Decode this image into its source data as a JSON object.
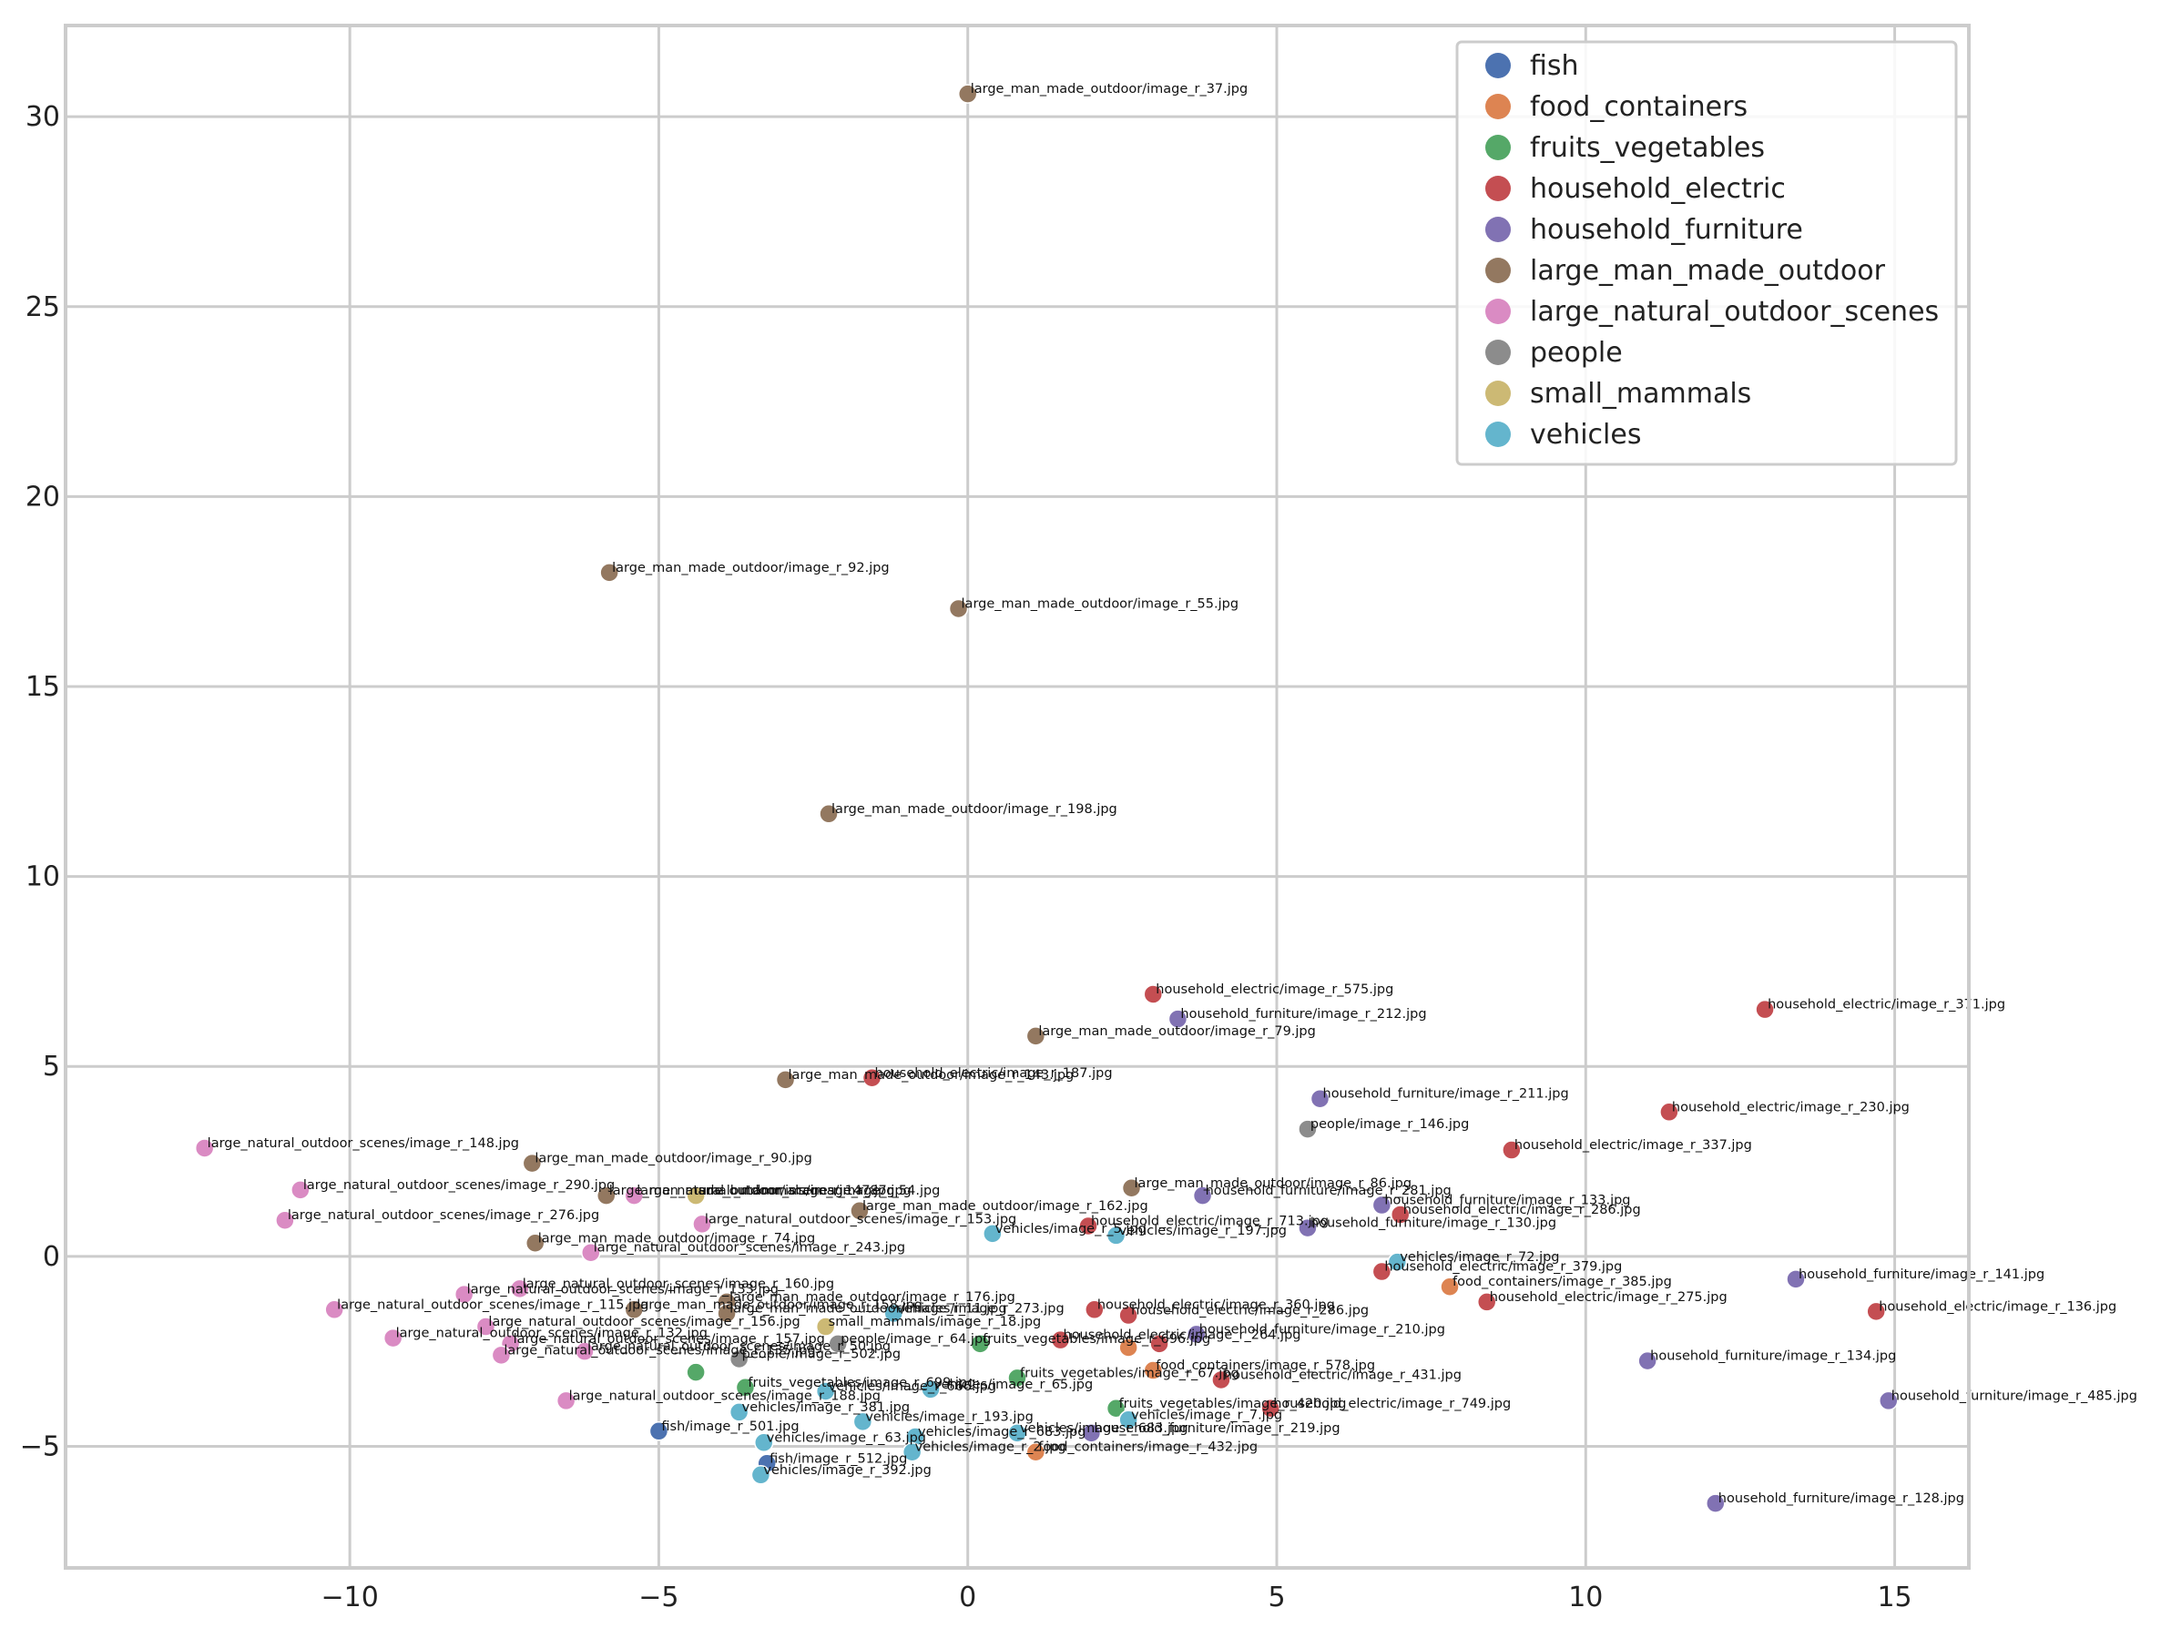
{
  "chart_data": {
    "type": "scatter",
    "title": "",
    "xlabel": "",
    "ylabel": "",
    "xlim": [
      -14.6,
      16.2
    ],
    "ylim": [
      -8.2,
      32.4
    ],
    "x_ticks": [
      -10,
      -5,
      0,
      5,
      10,
      15
    ],
    "x_tick_labels": [
      "−10",
      "−5",
      "0",
      "5",
      "10",
      "15"
    ],
    "y_ticks": [
      -5,
      0,
      5,
      10,
      15,
      20,
      25,
      30
    ],
    "y_tick_labels": [
      "−5",
      "0",
      "5",
      "10",
      "15",
      "20",
      "25",
      "30"
    ],
    "grid": true,
    "legend_position": "top-right",
    "series": [
      {
        "name": "fish",
        "color": "#4c72b0",
        "points": [
          {
            "x": -5.0,
            "y": -4.6,
            "label": "fish/image_r_501.jpg"
          },
          {
            "x": -3.25,
            "y": -5.45,
            "label": "fish/image_r_512.jpg"
          }
        ]
      },
      {
        "name": "food_containers",
        "color": "#dd8452",
        "points": [
          {
            "x": 7.8,
            "y": -0.8,
            "label": "food_containers/image_r_385.jpg"
          },
          {
            "x": 3.0,
            "y": -3.0,
            "label": "food_containers/image_r_578.jpg"
          },
          {
            "x": 1.1,
            "y": -5.15,
            "label": "food_containers/image_r_432.jpg"
          },
          {
            "x": 2.6,
            "y": -2.4,
            "label": ""
          }
        ]
      },
      {
        "name": "fruits_vegetables",
        "color": "#55a868",
        "points": [
          {
            "x": -4.4,
            "y": -3.05,
            "label": ""
          },
          {
            "x": -3.6,
            "y": -3.45,
            "label": "fruits_vegetables/image_r_699.jpg"
          },
          {
            "x": 0.2,
            "y": -2.3,
            "label": "fruits_vegetables/image_r_696.jpg"
          },
          {
            "x": 0.8,
            "y": -3.2,
            "label": "fruits_vegetables/image_r_67.jpg"
          },
          {
            "x": 2.4,
            "y": -4.0,
            "label": "fruits_vegetables/image_r_420.jpg"
          }
        ]
      },
      {
        "name": "household_electric",
        "color": "#c44e52",
        "points": [
          {
            "x": 3.0,
            "y": 6.9,
            "label": "household_electric/image_r_575.jpg"
          },
          {
            "x": 12.9,
            "y": 6.5,
            "label": "household_electric/image_r_371.jpg"
          },
          {
            "x": -1.55,
            "y": 4.7,
            "label": "household_electric/image_r_187.jpg"
          },
          {
            "x": 11.35,
            "y": 3.8,
            "label": "household_electric/image_r_230.jpg"
          },
          {
            "x": 8.8,
            "y": 2.8,
            "label": "household_electric/image_r_337.jpg"
          },
          {
            "x": 7.0,
            "y": 1.1,
            "label": "household_electric/image_r_286.jpg"
          },
          {
            "x": 1.95,
            "y": 0.8,
            "label": "household_electric/image_r_713.jpg"
          },
          {
            "x": 6.7,
            "y": -0.4,
            "label": "household_electric/image_r_379.jpg"
          },
          {
            "x": 8.4,
            "y": -1.2,
            "label": "household_electric/image_r_275.jpg"
          },
          {
            "x": 14.7,
            "y": -1.45,
            "label": "household_electric/image_r_136.jpg"
          },
          {
            "x": 2.05,
            "y": -1.4,
            "label": "household_electric/image_r_360.jpg"
          },
          {
            "x": 2.6,
            "y": -1.55,
            "label": "household_electric/image_r_286.jpg"
          },
          {
            "x": 1.5,
            "y": -2.2,
            "label": "household_electric/image_r_264.jpg"
          },
          {
            "x": 3.1,
            "y": -2.3,
            "label": ""
          },
          {
            "x": 4.1,
            "y": -3.25,
            "label": "household_electric/image_r_431.jpg"
          },
          {
            "x": 4.9,
            "y": -4.0,
            "label": "household_electric/image_r_749.jpg"
          }
        ]
      },
      {
        "name": "household_furniture",
        "color": "#8172b3",
        "points": [
          {
            "x": 3.4,
            "y": 6.25,
            "label": "household_furniture/image_r_212.jpg"
          },
          {
            "x": 5.7,
            "y": 4.15,
            "label": "household_furniture/image_r_211.jpg"
          },
          {
            "x": 6.7,
            "y": 1.35,
            "label": "household_furniture/image_r_133.jpg"
          },
          {
            "x": 5.5,
            "y": 0.75,
            "label": "household_furniture/image_r_130.jpg"
          },
          {
            "x": 3.8,
            "y": 1.6,
            "label": "household_furniture/image_r_281.jpg"
          },
          {
            "x": 13.4,
            "y": -0.6,
            "label": "household_furniture/image_r_141.jpg"
          },
          {
            "x": 3.7,
            "y": -2.05,
            "label": "household_furniture/image_r_210.jpg"
          },
          {
            "x": 11.0,
            "y": -2.75,
            "label": "household_furniture/image_r_134.jpg"
          },
          {
            "x": 14.9,
            "y": -3.8,
            "label": "household_furniture/image_r_485.jpg"
          },
          {
            "x": 2.0,
            "y": -4.65,
            "label": "household_furniture/image_r_219.jpg"
          },
          {
            "x": 12.1,
            "y": -6.5,
            "label": "household_furniture/image_r_128.jpg"
          }
        ]
      },
      {
        "name": "large_man_made_outdoor",
        "color": "#937860",
        "points": [
          {
            "x": 0.0,
            "y": 30.6,
            "label": "large_man_made_outdoor/image_r_37.jpg"
          },
          {
            "x": -5.8,
            "y": 18.0,
            "label": "large_man_made_outdoor/image_r_92.jpg"
          },
          {
            "x": -0.15,
            "y": 17.05,
            "label": "large_man_made_outdoor/image_r_55.jpg"
          },
          {
            "x": -2.25,
            "y": 11.65,
            "label": "large_man_made_outdoor/image_r_198.jpg"
          },
          {
            "x": 1.1,
            "y": 5.8,
            "label": "large_man_made_outdoor/image_r_79.jpg"
          },
          {
            "x": -2.95,
            "y": 4.65,
            "label": "large_man_made_outdoor/image_r_143.jpg"
          },
          {
            "x": -7.05,
            "y": 2.45,
            "label": "large_man_made_outdoor/image_r_90.jpg"
          },
          {
            "x": 2.65,
            "y": 1.8,
            "label": "large_man_made_outdoor/image_r_86.jpg"
          },
          {
            "x": -5.85,
            "y": 1.6,
            "label": "large_man_made_outdoor/image_r_147.jpg"
          },
          {
            "x": -1.75,
            "y": 1.2,
            "label": "large_man_made_outdoor/image_r_162.jpg"
          },
          {
            "x": -7.0,
            "y": 0.35,
            "label": "large_man_made_outdoor/image_r_74.jpg"
          },
          {
            "x": -3.9,
            "y": -1.2,
            "label": "large_man_made_outdoor/image_r_176.jpg"
          },
          {
            "x": -5.4,
            "y": -1.4,
            "label": "large_man_made_outdoor/image_r_158.jpg"
          },
          {
            "x": -3.9,
            "y": -1.5,
            "label": "large_man_made_outdoor/image_r_11.jpg"
          }
        ]
      },
      {
        "name": "large_natural_outdoor_scenes",
        "color": "#da8bc3",
        "points": [
          {
            "x": -12.35,
            "y": 2.85,
            "label": "large_natural_outdoor_scenes/image_r_148.jpg"
          },
          {
            "x": -10.8,
            "y": 1.75,
            "label": "large_natural_outdoor_scenes/image_r_290.jpg"
          },
          {
            "x": -5.4,
            "y": 1.6,
            "label": "large_natural_outdoor_scenes/image_r_54.jpg"
          },
          {
            "x": -11.05,
            "y": 0.95,
            "label": "large_natural_outdoor_scenes/image_r_276.jpg"
          },
          {
            "x": -4.3,
            "y": 0.85,
            "label": "large_natural_outdoor_scenes/image_r_153.jpg"
          },
          {
            "x": -6.1,
            "y": 0.1,
            "label": "large_natural_outdoor_scenes/image_r_243.jpg"
          },
          {
            "x": -7.25,
            "y": -0.85,
            "label": "large_natural_outdoor_scenes/image_r_160.jpg"
          },
          {
            "x": -8.15,
            "y": -1.0,
            "label": "large_natural_outdoor_scenes/image_r_133.jpg"
          },
          {
            "x": -10.25,
            "y": -1.4,
            "label": "large_natural_outdoor_scenes/image_r_115.jpg"
          },
          {
            "x": -7.8,
            "y": -1.85,
            "label": "large_natural_outdoor_scenes/image_r_156.jpg"
          },
          {
            "x": -9.3,
            "y": -2.15,
            "label": "large_natural_outdoor_scenes/image_r_132.jpg"
          },
          {
            "x": -7.4,
            "y": -2.3,
            "label": "large_natural_outdoor_scenes/image_r_157.jpg"
          },
          {
            "x": -7.55,
            "y": -2.6,
            "label": "large_natural_outdoor_scenes/image_r_135.jpg"
          },
          {
            "x": -6.2,
            "y": -2.5,
            "label": "large_natural_outdoor_scenes/image_r_50.jpg"
          },
          {
            "x": -6.5,
            "y": -3.8,
            "label": "large_natural_outdoor_scenes/image_r_188.jpg"
          }
        ]
      },
      {
        "name": "people",
        "color": "#8c8c8c",
        "points": [
          {
            "x": 5.5,
            "y": 3.35,
            "label": "people/image_r_146.jpg"
          },
          {
            "x": -2.1,
            "y": -2.3,
            "label": "people/image_r_64.jpg"
          },
          {
            "x": -3.7,
            "y": -2.7,
            "label": "people/image_r_502.jpg"
          }
        ]
      },
      {
        "name": "small_mammals",
        "color": "#ccb974",
        "points": [
          {
            "x": -4.4,
            "y": 1.6,
            "label": "small_mammals/image_r_87.jpg"
          },
          {
            "x": -2.3,
            "y": -1.85,
            "label": "small_mammals/image_r_18.jpg"
          }
        ]
      },
      {
        "name": "vehicles",
        "color": "#64b5cd",
        "points": [
          {
            "x": 0.4,
            "y": 0.6,
            "label": "vehicles/image_r_5.jpg"
          },
          {
            "x": 2.4,
            "y": 0.55,
            "label": "vehicles/image_r_197.jpg"
          },
          {
            "x": 6.95,
            "y": -0.15,
            "label": "vehicles/image_r_72.jpg"
          },
          {
            "x": -1.2,
            "y": -1.5,
            "label": "vehicles/image_r_273.jpg"
          },
          {
            "x": -0.6,
            "y": -3.5,
            "label": "vehicles/image_r_65.jpg"
          },
          {
            "x": -2.3,
            "y": -3.55,
            "label": "vehicles/image_r_666.jpg"
          },
          {
            "x": -3.7,
            "y": -4.1,
            "label": "vehicles/image_r_381.jpg"
          },
          {
            "x": -1.7,
            "y": -4.35,
            "label": "vehicles/image_r_193.jpg"
          },
          {
            "x": -0.85,
            "y": -4.75,
            "label": "vehicles/image_r_683.jpg"
          },
          {
            "x": 2.6,
            "y": -4.3,
            "label": "vehicles/image_r_7.jpg"
          },
          {
            "x": 0.8,
            "y": -4.65,
            "label": "vehicles/image_r_683.jpg"
          },
          {
            "x": -3.3,
            "y": -4.9,
            "label": "vehicles/image_r_63.jpg"
          },
          {
            "x": -0.9,
            "y": -5.15,
            "label": "vehicles/image_r_2.jpg"
          },
          {
            "x": -3.35,
            "y": -5.75,
            "label": "vehicles/image_r_392.jpg"
          }
        ]
      }
    ]
  }
}
